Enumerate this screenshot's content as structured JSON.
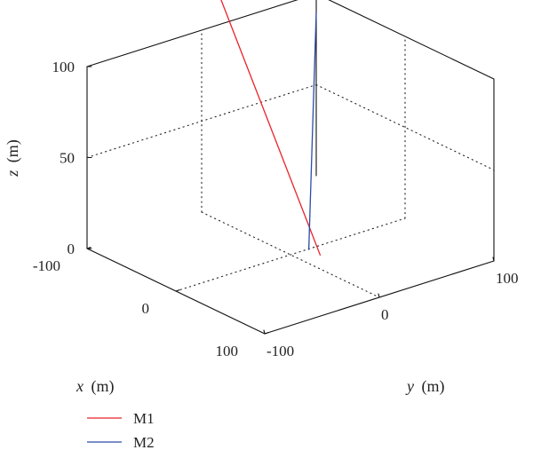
{
  "chart_data": {
    "type": "line",
    "projection": "3d",
    "title": "",
    "xlabel": {
      "name": "x",
      "unit": "(m)"
    },
    "ylabel": {
      "name": "y",
      "unit": "(m)"
    },
    "zlabel": {
      "name": "z",
      "unit": "(m)"
    },
    "xlim": [
      -100,
      100
    ],
    "ylim": [
      -100,
      100
    ],
    "zlim": [
      0,
      100
    ],
    "x_ticks": [
      -100,
      0,
      100
    ],
    "y_ticks": [
      -100,
      0,
      100
    ],
    "z_ticks": [
      0,
      50,
      100
    ],
    "grid": true,
    "grid_style": "dotted",
    "box": true,
    "legend_position": "bottom-left",
    "series": [
      {
        "name": "M1",
        "color": "#e8232a",
        "points": [
          {
            "x": 40,
            "y": -5,
            "z": 10
          },
          {
            "x": -100,
            "y": 5,
            "z": 135
          }
        ]
      },
      {
        "name": "M2",
        "color": "#2b4ba8",
        "points": [
          {
            "x": 40,
            "y": -15,
            "z": 15
          },
          {
            "x": -100,
            "y": 100,
            "z": 90
          }
        ]
      }
    ]
  }
}
